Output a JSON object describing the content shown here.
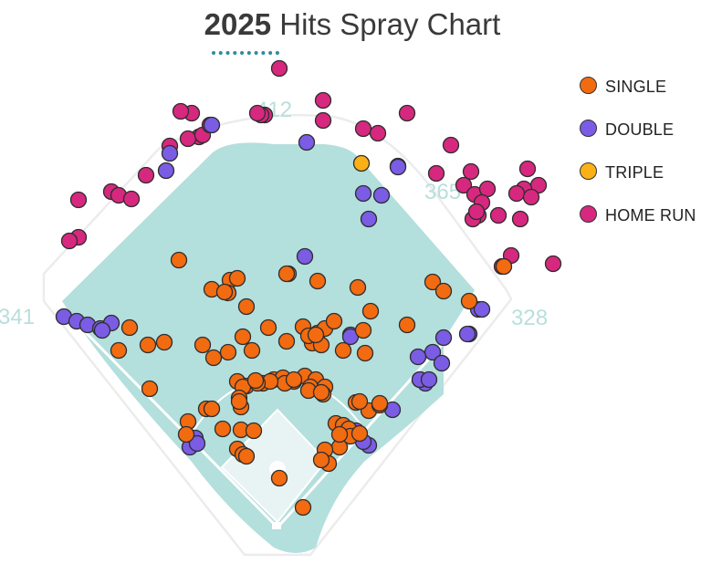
{
  "title": {
    "year": "2025",
    "text": "Hits Spray Chart"
  },
  "colors": {
    "single": "#f26b10",
    "double": "#7b5ce5",
    "triple": "#fbb116",
    "home_run": "#d6287e",
    "field": "#b3dfdd",
    "distance_label": "#b8dfdc",
    "title_accent": "#2b8c9e"
  },
  "field_distances": {
    "left": "341",
    "center": "412",
    "right_center": "365",
    "right": "328"
  },
  "legend": [
    {
      "key": "single",
      "label": "SINGLE"
    },
    {
      "key": "double",
      "label": "DOUBLE"
    },
    {
      "key": "triple",
      "label": "TRIPLE"
    },
    {
      "key": "home_run",
      "label": "HOME RUN"
    }
  ],
  "chart_data": {
    "type": "scatter",
    "title": "2025 Hits Spray Chart",
    "series": [
      {
        "name": "SINGLE",
        "count": 89
      },
      {
        "name": "DOUBLE",
        "count": 36
      },
      {
        "name": "TRIPLE",
        "count": 1
      },
      {
        "name": "HOME RUN",
        "count": 44
      }
    ]
  }
}
